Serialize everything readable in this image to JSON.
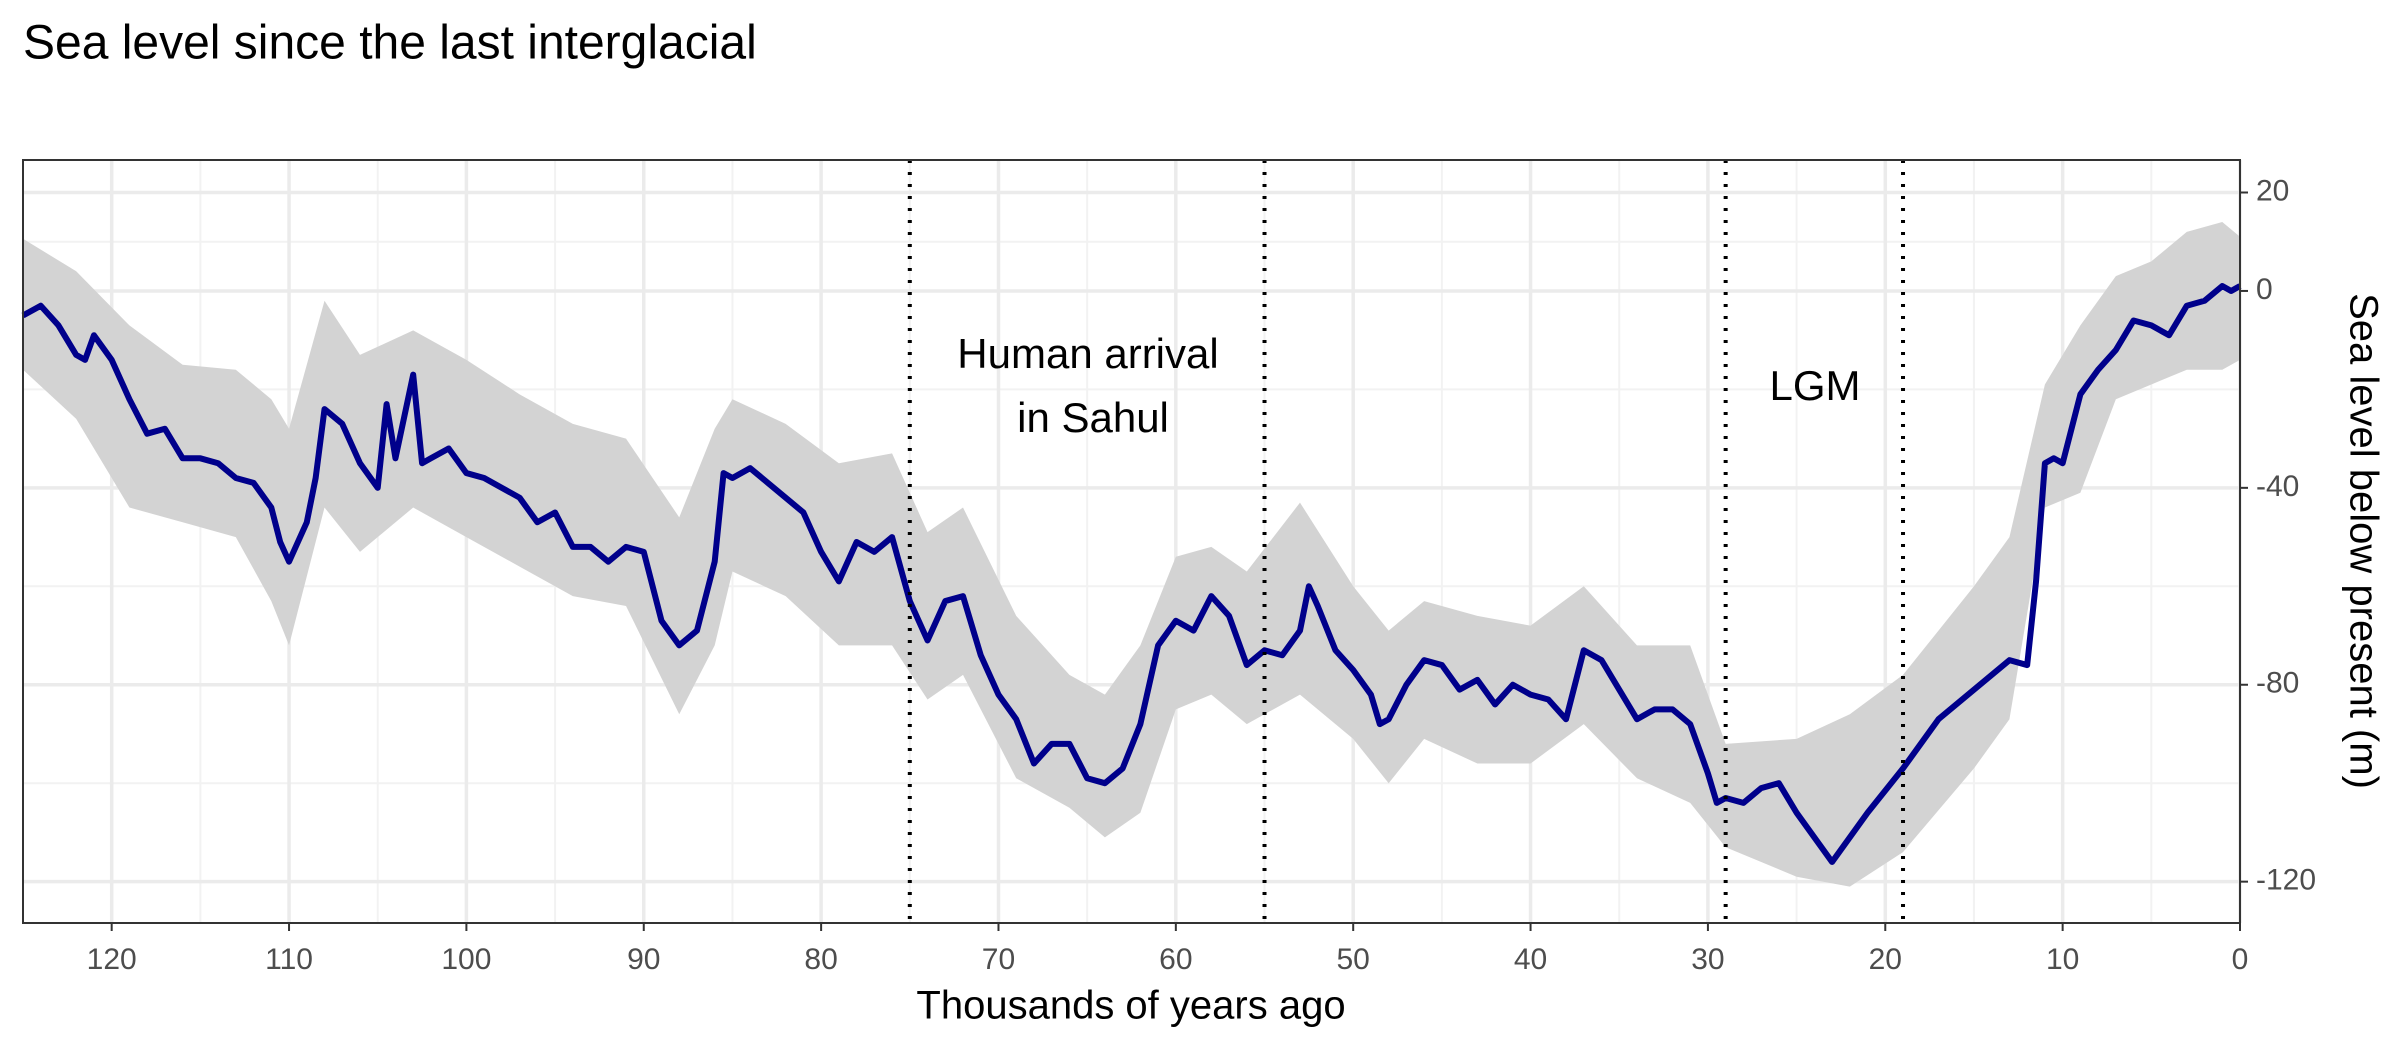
{
  "chart_data": {
    "type": "line",
    "title": "Sea level since the last interglacial",
    "xlabel": "Thousands of years ago",
    "ylabel": "Sea level below present (m)",
    "annotations": [
      "Human arrival",
      "in Sahul",
      "LGM"
    ],
    "xlim": [
      125,
      0
    ],
    "ylim": [
      -128.4,
      26.6
    ],
    "xticks": [
      120,
      110,
      100,
      90,
      80,
      70,
      60,
      50,
      40,
      30,
      20,
      10,
      0
    ],
    "yticks": [
      20,
      0,
      -40,
      -80,
      -120
    ],
    "xminor": [
      125,
      115,
      105,
      95,
      85,
      75,
      65,
      55,
      45,
      35,
      25,
      15,
      5
    ],
    "yminor": [
      10,
      -20,
      -60,
      -100
    ],
    "grid": true,
    "vlines": [
      75,
      55,
      29,
      19
    ],
    "x": [
      125,
      124,
      123,
      122,
      121.5,
      121,
      120,
      119,
      118,
      117,
      116,
      115,
      114,
      113,
      112,
      111,
      110.5,
      110,
      109,
      108.5,
      108,
      107,
      106,
      105,
      104.5,
      104,
      103,
      102.5,
      102,
      101,
      100,
      99,
      98,
      97,
      96,
      95,
      94,
      93,
      92,
      91,
      90,
      89,
      88,
      87,
      86,
      85.5,
      85,
      84,
      83,
      82,
      81,
      80,
      79,
      78,
      77,
      76,
      75,
      74,
      73,
      72,
      71,
      70,
      69,
      68,
      67,
      66,
      65,
      64,
      63,
      62,
      61,
      60,
      59,
      58,
      57,
      56,
      55,
      54,
      53,
      52.5,
      52,
      51,
      50,
      49,
      48.5,
      48,
      47,
      46,
      45,
      44,
      43,
      42,
      41,
      40,
      39,
      38,
      37.5,
      37,
      36,
      35,
      34,
      33,
      32,
      31,
      30,
      29.5,
      29,
      28,
      27,
      26,
      25,
      23,
      21,
      19,
      17,
      15,
      13,
      12,
      11.5,
      11,
      10.5,
      10,
      9,
      8,
      7,
      6,
      5,
      4,
      3,
      2,
      1,
      0.5,
      0
    ],
    "series": [
      {
        "color": "#00008b",
        "values": [
          -5,
          -3,
          -7,
          -13,
          -14,
          -9,
          -14,
          -22,
          -29,
          -28,
          -34,
          -34,
          -35,
          -38,
          -39,
          -44,
          -51,
          -55,
          -47,
          -38,
          -24,
          -27,
          -35,
          -40,
          -23,
          -34,
          -17,
          -35,
          -34,
          -32,
          -37,
          -38,
          -40,
          -42,
          -47,
          -45,
          -52,
          -52,
          -55,
          -52,
          -53,
          -67,
          -72,
          -69,
          -55,
          -37,
          -38,
          -36,
          -39,
          -42,
          -45,
          -53,
          -59,
          -51,
          -53,
          -50,
          -63,
          -71,
          -63,
          -62,
          -74,
          -82,
          -87,
          -96,
          -92,
          -92,
          -99,
          -100,
          -97,
          -88,
          -72,
          -67,
          -69,
          -62,
          -66,
          -76,
          -73,
          -74,
          -69,
          -60,
          -64,
          -73,
          -77,
          -82,
          -88,
          -87,
          -80,
          -75,
          -76,
          -81,
          -79,
          -84,
          -80,
          -82,
          -83,
          -87,
          -80,
          -73,
          -75,
          -81,
          -87,
          -85,
          -85,
          -88,
          -98,
          -104,
          -103,
          -104,
          -101,
          -100,
          -106,
          -116,
          -106,
          -97,
          -87,
          -81,
          -75,
          -76,
          -59,
          -35,
          -34,
          -35,
          -21,
          -16,
          -12,
          -6,
          -7,
          -9,
          -3,
          -2,
          1,
          0,
          1
        ]
      }
    ],
    "band": {
      "color": "#d3d3d3",
      "x": [
        125,
        122,
        119,
        116,
        113,
        111,
        110,
        108,
        106,
        103,
        100,
        97,
        94,
        91,
        88,
        86,
        85,
        82,
        79,
        76,
        74,
        72,
        69,
        66,
        64,
        62,
        60,
        58,
        56,
        53,
        50,
        48,
        46,
        43,
        40,
        37,
        34,
        31,
        29,
        25,
        22,
        19,
        15,
        13,
        11,
        9,
        7,
        5,
        3,
        1,
        0
      ],
      "upper": [
        10.6,
        4,
        -7,
        -15,
        -16,
        -22,
        -28,
        -2,
        -13,
        -8,
        -14,
        -21,
        -27,
        -30,
        -46,
        -28,
        -22,
        -27,
        -35,
        -33,
        -49,
        -44,
        -66,
        -78,
        -82,
        -72,
        -54,
        -52,
        -57,
        -43,
        -60,
        -69,
        -63,
        -66,
        -68,
        -60,
        -72,
        -72,
        -92,
        -91,
        -86,
        -78,
        -60,
        -50,
        -19,
        -7,
        3,
        6,
        12,
        14,
        11
      ],
      "lower": [
        -16,
        -26,
        -44,
        -47,
        -50,
        -63,
        -72,
        -44,
        -53,
        -44,
        -50,
        -56,
        -62,
        -64,
        -86,
        -72,
        -57,
        -62,
        -72,
        -72,
        -83,
        -78,
        -99,
        -105,
        -111,
        -106,
        -85,
        -82,
        -88,
        -82,
        -91,
        -100,
        -91,
        -96,
        -96,
        -88,
        -99,
        -104,
        -113,
        -119,
        -121,
        -114,
        -97,
        -87,
        -44,
        -41,
        -22,
        -19,
        -16,
        -16,
        -14
      ]
    }
  }
}
